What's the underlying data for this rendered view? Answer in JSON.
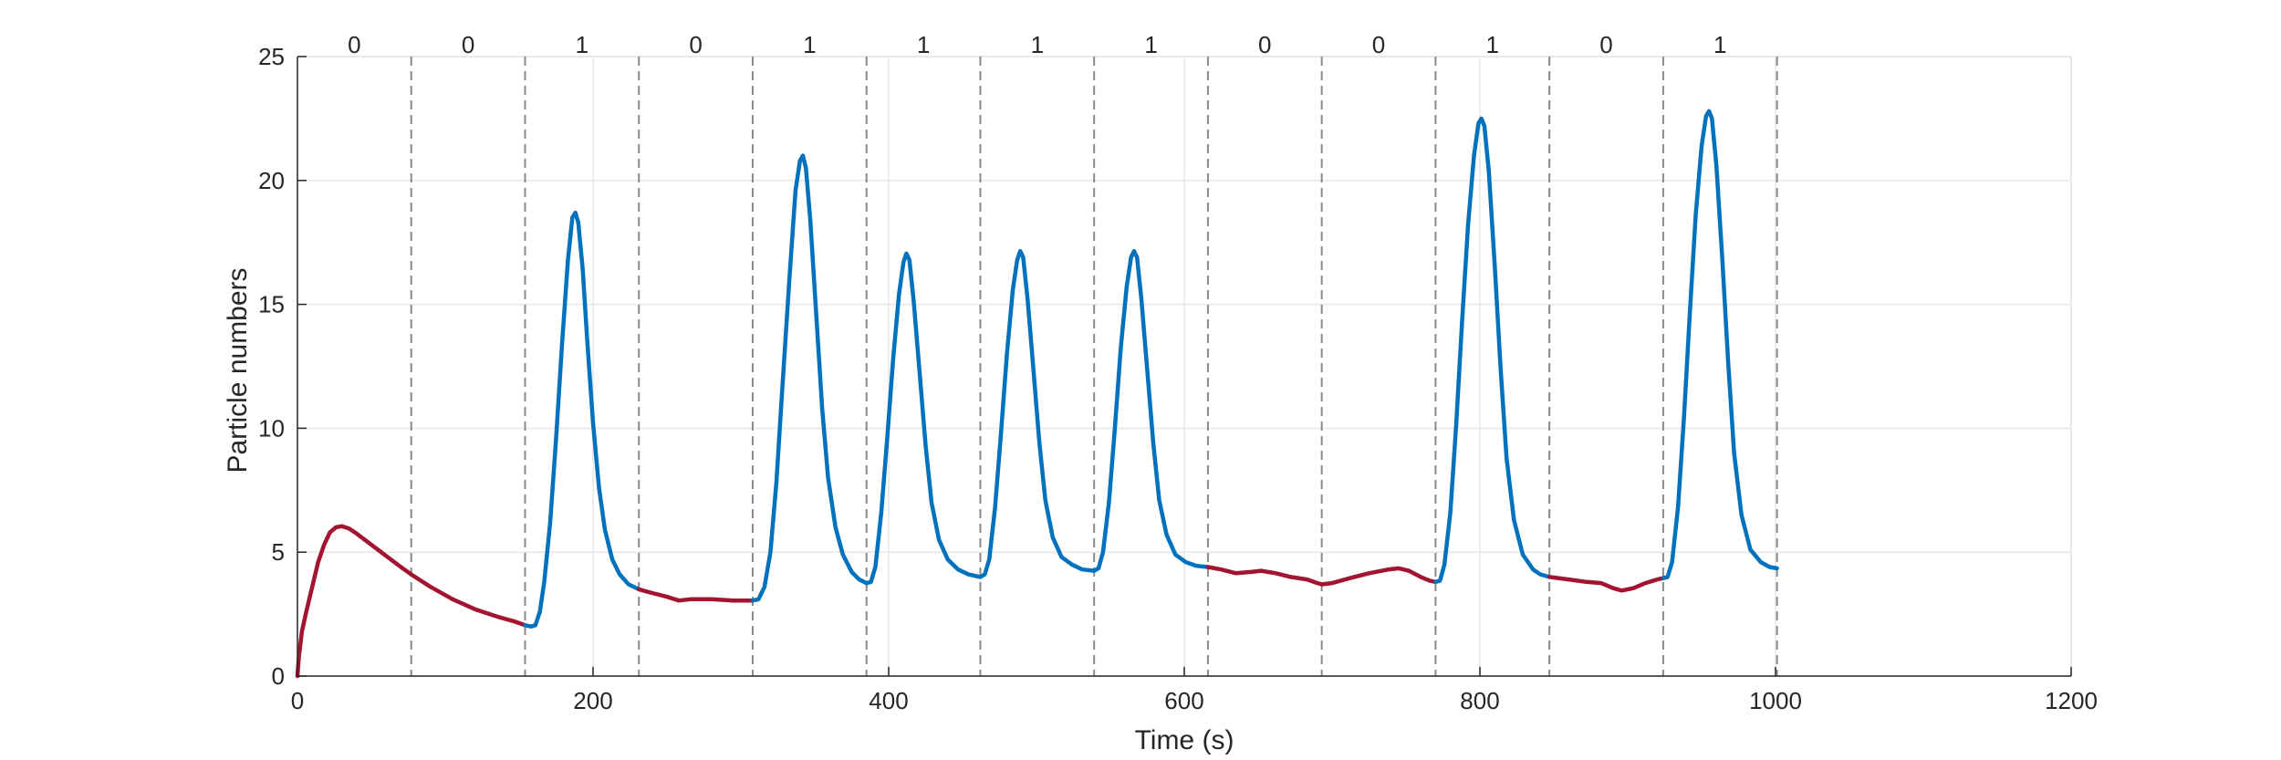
{
  "chart_data": {
    "type": "line",
    "xlabel": "Time (s)",
    "ylabel": "Particle numbers",
    "xlim": [
      0,
      1200
    ],
    "ylim": [
      0,
      25
    ],
    "xticks": [
      "0",
      "200",
      "400",
      "600",
      "800",
      "1000",
      "1200"
    ],
    "yticks": [
      "0",
      "5",
      "10",
      "15",
      "20",
      "25"
    ],
    "grid": true,
    "bit_boundaries": [
      0,
      77,
      154,
      231,
      308,
      385,
      462,
      539,
      616,
      693,
      770,
      847,
      924,
      1001
    ],
    "bits": [
      "0",
      "0",
      "1",
      "0",
      "1",
      "1",
      "1",
      "1",
      "0",
      "0",
      "1",
      "0",
      "1"
    ],
    "colors": {
      "bit0": "#a2142f",
      "bit1": "#0072bd",
      "boundary": "#8a8a8a",
      "grid": "#e6e6e6",
      "axis": "#262626"
    },
    "series": [
      {
        "bit": "0",
        "points": [
          [
            0,
            0
          ],
          [
            1,
            0.8
          ],
          [
            3,
            1.8
          ],
          [
            6,
            2.6
          ],
          [
            10,
            3.6
          ],
          [
            14,
            4.6
          ],
          [
            18,
            5.3
          ],
          [
            22,
            5.8
          ],
          [
            26,
            6.0
          ],
          [
            30,
            6.05
          ],
          [
            35,
            5.95
          ],
          [
            40,
            5.75
          ],
          [
            50,
            5.3
          ],
          [
            60,
            4.85
          ],
          [
            70,
            4.4
          ],
          [
            77,
            4.1
          ],
          [
            90,
            3.6
          ],
          [
            105,
            3.1
          ],
          [
            120,
            2.7
          ],
          [
            135,
            2.4
          ],
          [
            147,
            2.2
          ],
          [
            154,
            2.05
          ]
        ]
      },
      {
        "bit": "1",
        "points": [
          [
            154,
            2.05
          ],
          [
            158,
            2.0
          ],
          [
            161,
            2.05
          ],
          [
            164,
            2.6
          ],
          [
            167,
            3.8
          ],
          [
            171,
            6.2
          ],
          [
            175,
            9.6
          ],
          [
            179,
            13.4
          ],
          [
            183,
            16.8
          ],
          [
            186,
            18.5
          ],
          [
            188,
            18.7
          ],
          [
            190,
            18.3
          ],
          [
            193,
            16.4
          ],
          [
            196,
            13.6
          ],
          [
            200,
            10.2
          ],
          [
            204,
            7.6
          ],
          [
            208,
            5.9
          ],
          [
            213,
            4.7
          ],
          [
            218,
            4.1
          ],
          [
            224,
            3.7
          ],
          [
            231,
            3.5
          ]
        ]
      },
      {
        "bit": "0",
        "points": [
          [
            231,
            3.5
          ],
          [
            240,
            3.35
          ],
          [
            250,
            3.2
          ],
          [
            258,
            3.05
          ],
          [
            266,
            3.1
          ],
          [
            280,
            3.1
          ],
          [
            295,
            3.05
          ],
          [
            308,
            3.05
          ]
        ]
      },
      {
        "bit": "1",
        "points": [
          [
            308,
            3.05
          ],
          [
            312,
            3.1
          ],
          [
            316,
            3.6
          ],
          [
            320,
            5.0
          ],
          [
            324,
            7.8
          ],
          [
            328,
            11.6
          ],
          [
            333,
            16.2
          ],
          [
            337,
            19.6
          ],
          [
            340,
            20.8
          ],
          [
            342,
            21.0
          ],
          [
            344,
            20.5
          ],
          [
            347,
            18.4
          ],
          [
            351,
            14.6
          ],
          [
            355,
            10.8
          ],
          [
            359,
            8.0
          ],
          [
            364,
            6.0
          ],
          [
            369,
            4.9
          ],
          [
            375,
            4.2
          ],
          [
            380,
            3.9
          ],
          [
            385,
            3.75
          ]
        ]
      },
      {
        "bit": "1",
        "points": [
          [
            385,
            3.75
          ],
          [
            388,
            3.8
          ],
          [
            391,
            4.4
          ],
          [
            395,
            6.6
          ],
          [
            399,
            9.6
          ],
          [
            403,
            12.8
          ],
          [
            407,
            15.4
          ],
          [
            410,
            16.7
          ],
          [
            412,
            17.05
          ],
          [
            414,
            16.8
          ],
          [
            417,
            15.1
          ],
          [
            421,
            12.2
          ],
          [
            425,
            9.3
          ],
          [
            429,
            7.0
          ],
          [
            434,
            5.5
          ],
          [
            440,
            4.7
          ],
          [
            447,
            4.3
          ],
          [
            454,
            4.1
          ],
          [
            462,
            4.0
          ]
        ]
      },
      {
        "bit": "1",
        "points": [
          [
            462,
            4.0
          ],
          [
            465,
            4.1
          ],
          [
            468,
            4.7
          ],
          [
            472,
            6.8
          ],
          [
            476,
            9.8
          ],
          [
            480,
            13.0
          ],
          [
            484,
            15.6
          ],
          [
            487,
            16.8
          ],
          [
            489,
            17.15
          ],
          [
            491,
            16.9
          ],
          [
            494,
            15.2
          ],
          [
            498,
            12.3
          ],
          [
            502,
            9.4
          ],
          [
            506,
            7.1
          ],
          [
            511,
            5.6
          ],
          [
            517,
            4.8
          ],
          [
            524,
            4.5
          ],
          [
            531,
            4.3
          ],
          [
            539,
            4.25
          ]
        ]
      },
      {
        "bit": "1",
        "points": [
          [
            539,
            4.25
          ],
          [
            542,
            4.35
          ],
          [
            545,
            5.0
          ],
          [
            549,
            7.0
          ],
          [
            553,
            10.0
          ],
          [
            557,
            13.2
          ],
          [
            561,
            15.7
          ],
          [
            564,
            16.9
          ],
          [
            566,
            17.15
          ],
          [
            568,
            16.9
          ],
          [
            571,
            15.2
          ],
          [
            575,
            12.3
          ],
          [
            579,
            9.4
          ],
          [
            583,
            7.1
          ],
          [
            588,
            5.7
          ],
          [
            594,
            4.9
          ],
          [
            601,
            4.6
          ],
          [
            608,
            4.45
          ],
          [
            616,
            4.4
          ]
        ]
      },
      {
        "bit": "0",
        "points": [
          [
            616,
            4.4
          ],
          [
            625,
            4.3
          ],
          [
            635,
            4.15
          ],
          [
            645,
            4.2
          ],
          [
            652,
            4.25
          ],
          [
            662,
            4.15
          ],
          [
            672,
            4.0
          ],
          [
            683,
            3.9
          ],
          [
            690,
            3.75
          ],
          [
            693,
            3.7
          ],
          [
            700,
            3.75
          ],
          [
            712,
            3.95
          ],
          [
            725,
            4.15
          ],
          [
            738,
            4.3
          ],
          [
            745,
            4.35
          ],
          [
            752,
            4.25
          ],
          [
            760,
            4.0
          ],
          [
            766,
            3.85
          ],
          [
            770,
            3.8
          ]
        ]
      },
      {
        "bit": "1",
        "points": [
          [
            770,
            3.8
          ],
          [
            773,
            3.85
          ],
          [
            776,
            4.5
          ],
          [
            780,
            6.6
          ],
          [
            784,
            10.2
          ],
          [
            788,
            14.4
          ],
          [
            792,
            18.2
          ],
          [
            796,
            21.0
          ],
          [
            799,
            22.3
          ],
          [
            801,
            22.5
          ],
          [
            803,
            22.2
          ],
          [
            806,
            20.4
          ],
          [
            810,
            16.6
          ],
          [
            814,
            12.4
          ],
          [
            818,
            8.8
          ],
          [
            823,
            6.3
          ],
          [
            829,
            4.9
          ],
          [
            836,
            4.3
          ],
          [
            841,
            4.1
          ],
          [
            847,
            4.0
          ]
        ]
      },
      {
        "bit": "0",
        "points": [
          [
            847,
            4.0
          ],
          [
            860,
            3.9
          ],
          [
            872,
            3.8
          ],
          [
            882,
            3.75
          ],
          [
            890,
            3.55
          ],
          [
            896,
            3.45
          ],
          [
            904,
            3.55
          ],
          [
            912,
            3.75
          ],
          [
            920,
            3.9
          ],
          [
            924,
            3.95
          ]
        ]
      },
      {
        "bit": "1",
        "points": [
          [
            924,
            3.95
          ],
          [
            927,
            4.0
          ],
          [
            930,
            4.6
          ],
          [
            934,
            6.8
          ],
          [
            938,
            10.4
          ],
          [
            942,
            14.6
          ],
          [
            946,
            18.6
          ],
          [
            950,
            21.4
          ],
          [
            953,
            22.6
          ],
          [
            955,
            22.8
          ],
          [
            957,
            22.5
          ],
          [
            960,
            20.6
          ],
          [
            964,
            16.8
          ],
          [
            968,
            12.6
          ],
          [
            972,
            9.0
          ],
          [
            977,
            6.5
          ],
          [
            983,
            5.1
          ],
          [
            990,
            4.6
          ],
          [
            996,
            4.4
          ],
          [
            1001,
            4.35
          ]
        ]
      }
    ]
  }
}
